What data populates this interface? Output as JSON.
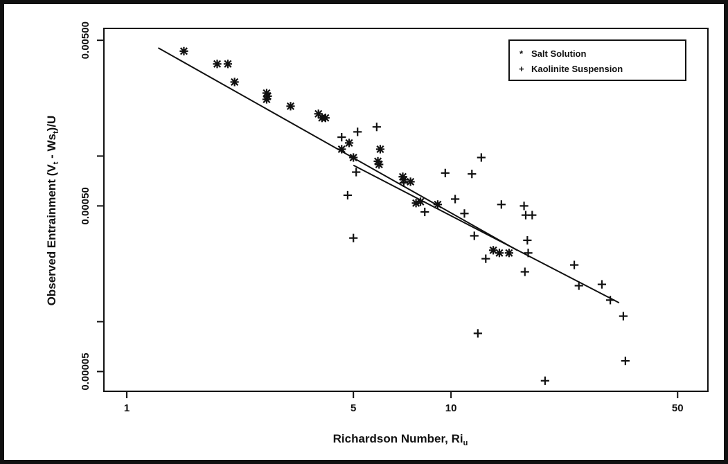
{
  "chart_data": {
    "type": "scatter",
    "xlabel": "Richardson Number, Ri",
    "xlabel_subscript": "u",
    "ylabel_parts": [
      "Observed Entrainment (V",
      "t",
      " - Ws",
      "t",
      ")/U"
    ],
    "x_scale": "log",
    "y_scale": "log",
    "xlim": [
      0.85,
      62
    ],
    "ylim": [
      3.8e-05,
      0.0059
    ],
    "x_ticks": [
      {
        "value": 1,
        "label": "1"
      },
      {
        "value": 5,
        "label": "5"
      },
      {
        "value": 10,
        "label": "10"
      },
      {
        "value": 50,
        "label": "50"
      }
    ],
    "y_ticks": [
      {
        "value": 0.005,
        "label": "0.00500"
      },
      {
        "value": 0.0005,
        "label": "0.00050"
      },
      {
        "value": 5e-05,
        "label": "0.00005"
      }
    ],
    "y_minor_ticks": [
      0.001,
      0.0001
    ],
    "legend": {
      "position": "top-right",
      "entries": [
        {
          "marker": "*",
          "label": "Salt Solution"
        },
        {
          "marker": "+",
          "label": "Kaolinite Suspension"
        }
      ]
    },
    "series": [
      {
        "name": "Salt Solution",
        "marker": "asterisk",
        "points": [
          {
            "x": 1.5,
            "y": 0.0043
          },
          {
            "x": 1.9,
            "y": 0.0036
          },
          {
            "x": 2.05,
            "y": 0.0036
          },
          {
            "x": 2.15,
            "y": 0.0028
          },
          {
            "x": 2.7,
            "y": 0.0024
          },
          {
            "x": 2.72,
            "y": 0.0023
          },
          {
            "x": 2.7,
            "y": 0.0022
          },
          {
            "x": 3.2,
            "y": 0.002
          },
          {
            "x": 3.9,
            "y": 0.0018
          },
          {
            "x": 4.0,
            "y": 0.0017
          },
          {
            "x": 4.1,
            "y": 0.0017
          },
          {
            "x": 4.6,
            "y": 0.0011
          },
          {
            "x": 4.85,
            "y": 0.0012
          },
          {
            "x": 5.0,
            "y": 0.00098
          },
          {
            "x": 5.95,
            "y": 0.00093
          },
          {
            "x": 6.0,
            "y": 0.00089
          },
          {
            "x": 6.05,
            "y": 0.0011
          },
          {
            "x": 7.1,
            "y": 0.00075
          },
          {
            "x": 7.15,
            "y": 0.00072
          },
          {
            "x": 7.5,
            "y": 0.0007
          },
          {
            "x": 7.8,
            "y": 0.00052
          },
          {
            "x": 8.05,
            "y": 0.00053
          },
          {
            "x": 9.1,
            "y": 0.00051
          },
          {
            "x": 13.5,
            "y": 0.00027
          },
          {
            "x": 14.1,
            "y": 0.00026
          },
          {
            "x": 15.1,
            "y": 0.00026
          }
        ],
        "fit": {
          "x": [
            1.25,
            16.0
          ],
          "y": [
            0.0045,
            0.00027
          ]
        }
      },
      {
        "name": "Kaolinite Suspension",
        "marker": "plus",
        "points": [
          {
            "x": 4.6,
            "y": 0.0013
          },
          {
            "x": 4.8,
            "y": 0.00058
          },
          {
            "x": 5.0,
            "y": 0.00032
          },
          {
            "x": 5.1,
            "y": 0.0008
          },
          {
            "x": 5.15,
            "y": 0.0014
          },
          {
            "x": 5.9,
            "y": 0.0015
          },
          {
            "x": 7.15,
            "y": 0.00069
          },
          {
            "x": 8.3,
            "y": 0.00046
          },
          {
            "x": 9.6,
            "y": 0.00079
          },
          {
            "x": 10.3,
            "y": 0.00055
          },
          {
            "x": 11.0,
            "y": 0.00045
          },
          {
            "x": 11.6,
            "y": 0.00078
          },
          {
            "x": 11.8,
            "y": 0.00033
          },
          {
            "x": 12.1,
            "y": 8.5e-05
          },
          {
            "x": 12.4,
            "y": 0.00098
          },
          {
            "x": 12.8,
            "y": 0.00024
          },
          {
            "x": 14.3,
            "y": 0.00051
          },
          {
            "x": 16.8,
            "y": 0.0005
          },
          {
            "x": 17.0,
            "y": 0.00044
          },
          {
            "x": 17.2,
            "y": 0.00031
          },
          {
            "x": 17.3,
            "y": 0.00026
          },
          {
            "x": 16.9,
            "y": 0.0002
          },
          {
            "x": 17.8,
            "y": 0.00044
          },
          {
            "x": 19.5,
            "y": 4.4e-05
          },
          {
            "x": 24.0,
            "y": 0.00022
          },
          {
            "x": 24.8,
            "y": 0.000165
          },
          {
            "x": 29.2,
            "y": 0.000168
          },
          {
            "x": 31.0,
            "y": 0.000135
          },
          {
            "x": 34.0,
            "y": 0.000108
          },
          {
            "x": 34.5,
            "y": 5.8e-05
          }
        ],
        "fit": {
          "x": [
            5.0,
            33.0
          ],
          "y": [
            0.00088,
            0.00013
          ]
        }
      }
    ]
  }
}
